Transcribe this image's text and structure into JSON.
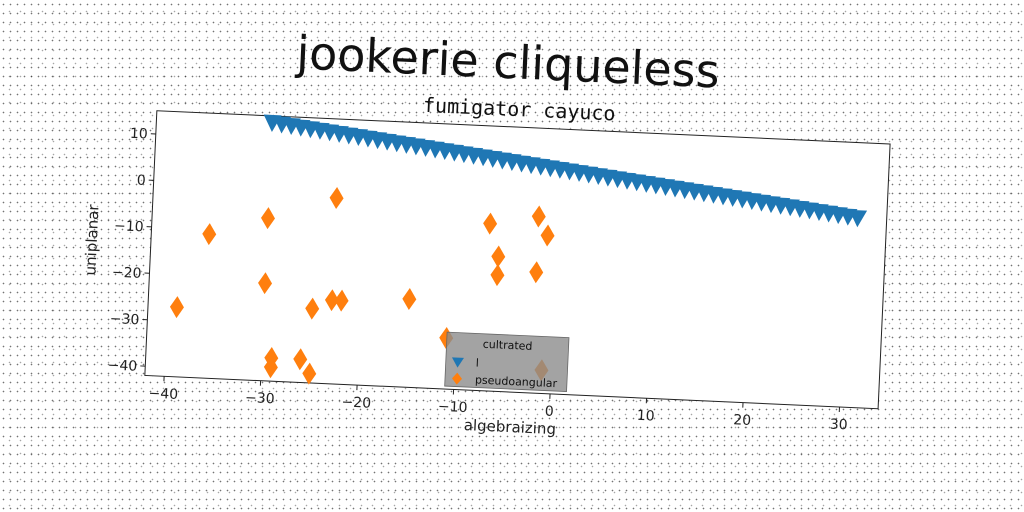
{
  "chart_data": {
    "type": "scatter",
    "title": "jookerie cliqueless",
    "subtitle": "fumigator cayuco",
    "xlabel": "algebraizing",
    "ylabel": "uniplanar",
    "xlim": [
      -42,
      34
    ],
    "ylim": [
      -42,
      15
    ],
    "xticks": [
      -40,
      -30,
      -20,
      -10,
      0,
      10,
      20,
      30
    ],
    "yticks": [
      10,
      0,
      -10,
      -20,
      -30,
      -40
    ],
    "grid": false,
    "legend": {
      "title": "cultrated",
      "placement": "lower-center",
      "entries": [
        "l",
        "pseudoangular"
      ]
    },
    "series": [
      {
        "name": "l",
        "marker": "triangle-down",
        "color": "#1f77b4",
        "x": [
          -30,
          -29,
          -28,
          -27,
          -26,
          -25,
          -24,
          -23,
          -22,
          -21,
          -20,
          -19,
          -18,
          -17,
          -16,
          -15,
          -14,
          -13,
          -12,
          -11,
          -10,
          -9,
          -8,
          -7,
          -6,
          -5,
          -4,
          -3,
          -2,
          -1,
          0,
          1,
          2,
          3,
          4,
          5,
          6,
          7,
          8,
          9,
          10,
          11,
          12,
          13,
          14,
          15,
          16,
          17,
          18,
          19,
          20,
          21,
          22,
          23,
          24,
          25,
          26,
          27,
          28,
          29,
          30,
          31
        ],
        "y": [
          13.5,
          13.26,
          13.02,
          12.77,
          12.53,
          12.29,
          12.05,
          11.81,
          11.56,
          11.32,
          11.08,
          10.84,
          10.6,
          10.35,
          10.11,
          9.87,
          9.63,
          9.39,
          9.15,
          8.9,
          8.66,
          8.42,
          8.18,
          7.94,
          7.69,
          7.45,
          7.21,
          6.97,
          6.73,
          6.48,
          6.24,
          6.0,
          5.76,
          5.52,
          5.27,
          5.03,
          4.79,
          4.55,
          4.31,
          4.06,
          3.82,
          3.58,
          3.34,
          3.1,
          2.85,
          2.61,
          2.37,
          2.13,
          1.89,
          1.65,
          1.4,
          1.16,
          0.92,
          0.68,
          0.44,
          0.19,
          -0.05,
          -0.29,
          -0.53,
          -0.77,
          -1.02,
          -1.26
        ]
      },
      {
        "name": "pseudoangular",
        "marker": "diamond",
        "color": "#ff7f0e",
        "x": [
          -39,
          -36,
          -30,
          -30,
          -29,
          -29,
          -26,
          -25,
          -25,
          -23,
          -23,
          -22,
          -15,
          -11,
          -7,
          -6,
          -6,
          -2,
          -2,
          -1,
          -1
        ],
        "y": [
          -27,
          -11,
          -7,
          -21,
          -37,
          -39,
          -37,
          -40,
          -26,
          -2,
          -24,
          -24,
          -23,
          -31,
          -6,
          -13,
          -17,
          -4,
          -16,
          -37,
          -8
        ]
      }
    ]
  }
}
